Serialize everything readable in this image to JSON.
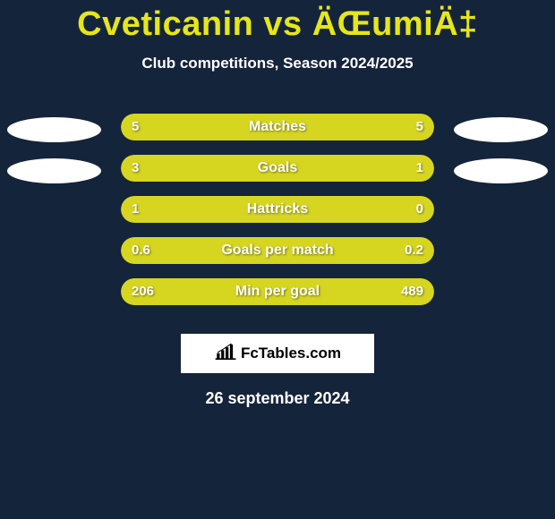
{
  "header": {
    "title": "Cveticanin vs ÄŒumiÄ‡",
    "subtitle": "Club competitions, Season 2024/2025"
  },
  "stats": {
    "items": [
      {
        "label": "Matches",
        "left_value": "5",
        "right_value": "5",
        "left_pct": 50,
        "right_pct": 50,
        "show_ellipses": true,
        "bar_track_color": "#16283f",
        "fill_color": "#d6d620"
      },
      {
        "label": "Goals",
        "left_value": "3",
        "right_value": "1",
        "left_pct": 75,
        "right_pct": 25,
        "show_ellipses": true,
        "bar_track_color": "#16283f",
        "fill_color": "#d6d620"
      },
      {
        "label": "Hattricks",
        "left_value": "1",
        "right_value": "0",
        "left_pct": 100,
        "right_pct": 0,
        "show_ellipses": false,
        "bar_track_color": "#16283f",
        "fill_color": "#d6d620"
      },
      {
        "label": "Goals per match",
        "left_value": "0.6",
        "right_value": "0.2",
        "left_pct": 75,
        "right_pct": 25,
        "show_ellipses": false,
        "bar_track_color": "#16283f",
        "fill_color": "#d6d620"
      },
      {
        "label": "Min per goal",
        "left_value": "206",
        "right_value": "489",
        "left_pct": 30,
        "right_pct": 70,
        "show_ellipses": false,
        "bar_track_color": "#16283f",
        "fill_color": "#d6d620"
      }
    ]
  },
  "footer": {
    "brand": "FcTables.com",
    "date": "26 september 2024"
  },
  "colors": {
    "page_bg": "#14243a",
    "accent": "#e6e618",
    "bar_fill": "#d6d620",
    "bar_track": "#16283f",
    "text": "#ffffff",
    "ellipse": "#ffffff",
    "logo_box_bg": "#ffffff"
  }
}
